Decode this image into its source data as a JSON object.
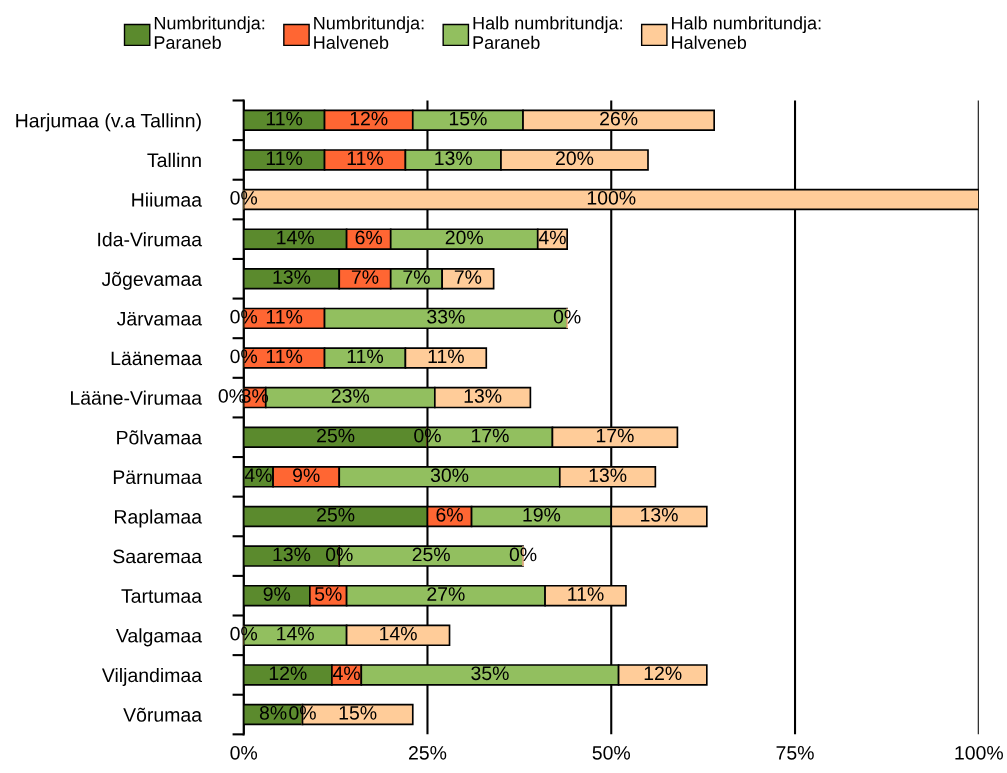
{
  "chart_data": {
    "type": "bar",
    "orientation": "horizontal",
    "stacked": true,
    "grid": "x",
    "legend": "top",
    "categories": [
      "Harjumaa (v.a Tallinn)",
      "Tallinn",
      "Hiiumaa",
      "Ida-Virumaa",
      "Jõgevamaa",
      "Järvamaa",
      "Läänemaa",
      "Lääne-Virumaa",
      "Põlvamaa",
      "Pärnumaa",
      "Raplamaa",
      "Saaremaa",
      "Tartumaa",
      "Valgamaa",
      "Viljandimaa",
      "Võrumaa"
    ],
    "series": [
      {
        "name": "Numbritundja:\nParaneb",
        "color": "#5b8a2d",
        "values": [
          11,
          11,
          0,
          14,
          13,
          0,
          0,
          0,
          25,
          4,
          25,
          13,
          9,
          0,
          12,
          8
        ],
        "value_labels": [
          "11%",
          "11%",
          "0%",
          "14%",
          "13%",
          "0%",
          "0%",
          "0%",
          "25%",
          "4%",
          "25%",
          "13%",
          "9%",
          "0%",
          "12%",
          "8%"
        ]
      },
      {
        "name": "Numbritundja:\nHalveneb",
        "color": "#ff6633",
        "values": [
          12,
          11,
          0,
          6,
          7,
          11,
          11,
          3,
          0,
          9,
          6,
          0,
          5,
          0,
          4,
          0
        ],
        "value_labels": [
          "12%",
          "11%",
          null,
          "6%",
          "7%",
          "11%",
          "11%",
          "3%",
          "0%",
          "9%",
          "6%",
          "0%",
          "5%",
          null,
          "4%",
          "0%"
        ]
      },
      {
        "name": "Halb numbritundja:\nParaneb",
        "color": "#92bf5f",
        "values": [
          15,
          13,
          0,
          20,
          7,
          33,
          11,
          23,
          17,
          30,
          19,
          25,
          27,
          14,
          35,
          0
        ],
        "value_labels": [
          "15%",
          "13%",
          null,
          "20%",
          "7%",
          "33%",
          "11%",
          "23%",
          "17%",
          "30%",
          "19%",
          "25%",
          "27%",
          "14%",
          "35%",
          null
        ]
      },
      {
        "name": "Halb numbritundja:\nHalveneb",
        "color": "#ffcc99",
        "values": [
          26,
          20,
          100,
          4,
          7,
          0,
          11,
          13,
          17,
          13,
          13,
          0,
          11,
          14,
          12,
          15
        ],
        "value_labels": [
          "26%",
          "20%",
          "100%",
          "4%",
          "7%",
          "0%",
          "11%",
          "13%",
          "17%",
          "13%",
          "13%",
          "0%",
          "11%",
          "14%",
          "12%",
          "15%"
        ]
      }
    ],
    "xlim": [
      0,
      100
    ],
    "xticks": [
      {
        "value": 0,
        "label": "0%"
      },
      {
        "value": 25,
        "label": "25%"
      },
      {
        "value": 50,
        "label": "50%"
      },
      {
        "value": 75,
        "label": "75%"
      },
      {
        "value": 100,
        "label": "100%"
      }
    ]
  }
}
